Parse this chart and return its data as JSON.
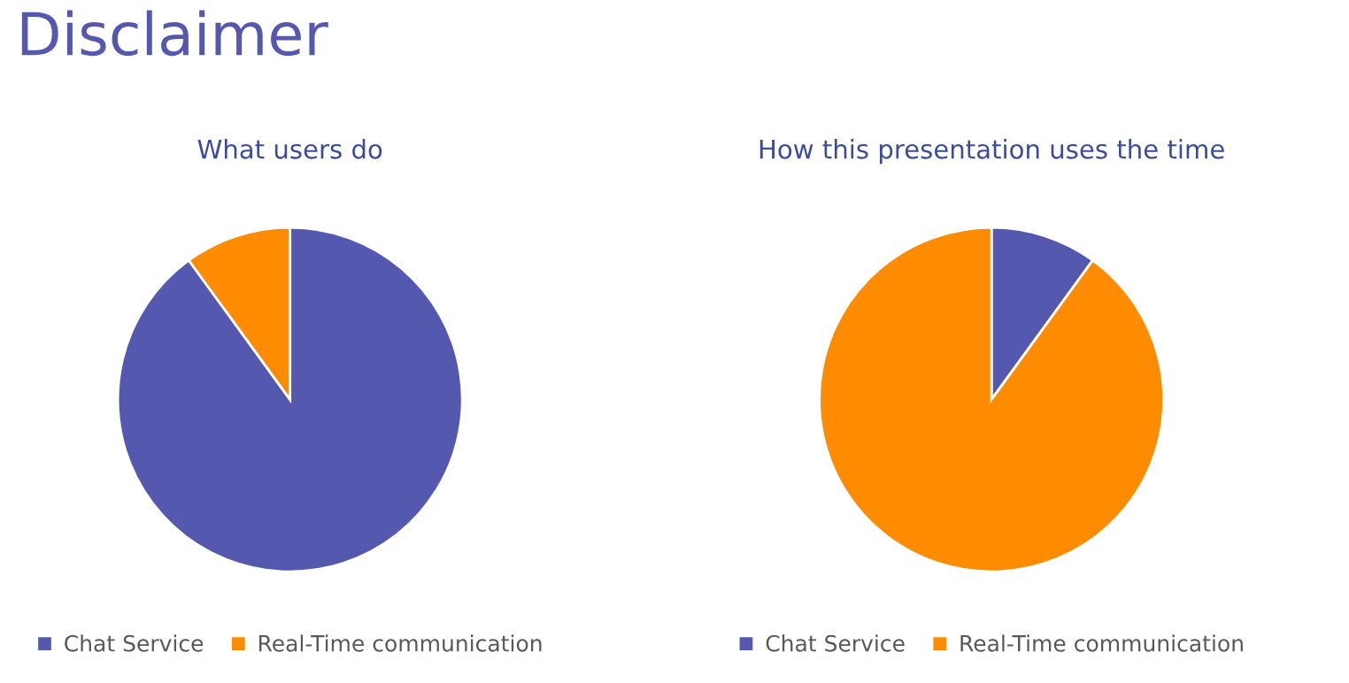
{
  "chart_data": [
    {
      "type": "pie",
      "title": "What users do",
      "annotations": [
        "Disclaimer"
      ],
      "categories": [
        "Chat Service",
        "Real-Time communication"
      ],
      "values": [
        90,
        10
      ],
      "colors": [
        "#5558af",
        "#ff8c00"
      ],
      "legend": "bottom"
    },
    {
      "type": "pie",
      "title": "How this presentation uses the time",
      "categories": [
        "Chat Service",
        "Real-Time communication"
      ],
      "values": [
        10,
        90
      ],
      "colors": [
        "#5558af",
        "#ff8c00"
      ],
      "legend": "bottom"
    }
  ]
}
